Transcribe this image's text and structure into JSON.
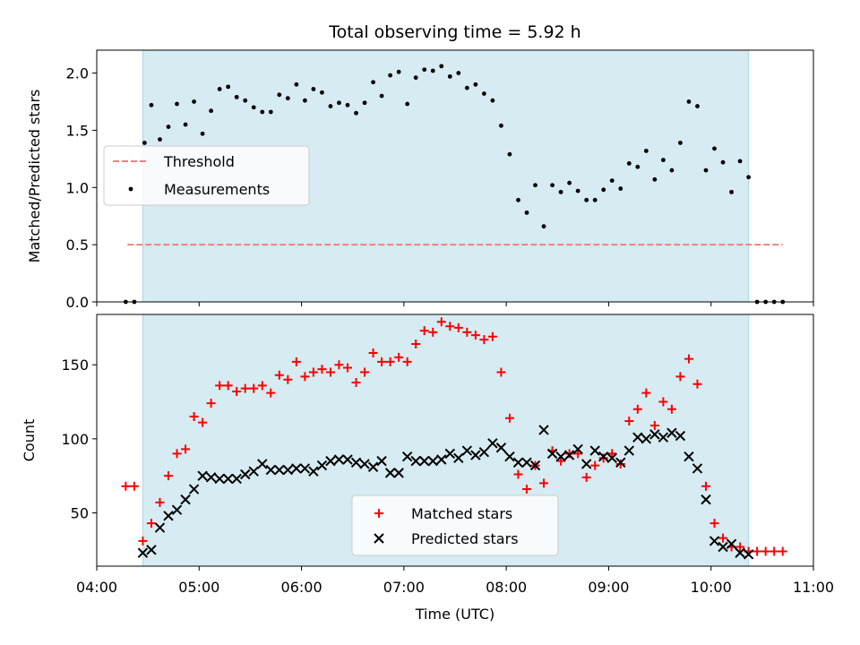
{
  "chart_data": [
    {
      "type": "scatter",
      "title": "Total observing time = 5.92 h",
      "xlabel": "",
      "ylabel": "Matched/Predicted stars",
      "xlim": [
        "04:00",
        "11:00"
      ],
      "ylim": [
        0,
        2.2
      ],
      "yticks": [
        0.0,
        0.5,
        1.0,
        1.5,
        2.0
      ],
      "ytick_labels": [
        "0.0",
        "0.5",
        "1.0",
        "1.5",
        "2.0"
      ],
      "observing_window": [
        "04:27",
        "10:22"
      ],
      "threshold": {
        "name": "Threshold",
        "value": 0.5,
        "x_range": [
          "04:18",
          "10:42"
        ],
        "color": "#f08080"
      },
      "series": [
        {
          "name": "Measurements",
          "color": "#000000",
          "points": [
            [
              "04:17",
              0.0
            ],
            [
              "04:22",
              0.0
            ],
            [
              "04:28",
              1.39
            ],
            [
              "04:32",
              1.72
            ],
            [
              "04:37",
              1.42
            ],
            [
              "04:42",
              1.53
            ],
            [
              "04:47",
              1.73
            ],
            [
              "04:52",
              1.55
            ],
            [
              "04:57",
              1.75
            ],
            [
              "05:02",
              1.47
            ],
            [
              "05:07",
              1.67
            ],
            [
              "05:12",
              1.86
            ],
            [
              "05:17",
              1.88
            ],
            [
              "05:22",
              1.79
            ],
            [
              "05:27",
              1.76
            ],
            [
              "05:32",
              1.7
            ],
            [
              "05:37",
              1.66
            ],
            [
              "05:42",
              1.66
            ],
            [
              "05:47",
              1.81
            ],
            [
              "05:52",
              1.78
            ],
            [
              "05:57",
              1.9
            ],
            [
              "06:02",
              1.76
            ],
            [
              "06:07",
              1.86
            ],
            [
              "06:12",
              1.83
            ],
            [
              "06:17",
              1.71
            ],
            [
              "06:22",
              1.74
            ],
            [
              "06:27",
              1.72
            ],
            [
              "06:32",
              1.65
            ],
            [
              "06:37",
              1.74
            ],
            [
              "06:42",
              1.92
            ],
            [
              "06:47",
              1.8
            ],
            [
              "06:52",
              1.98
            ],
            [
              "06:57",
              2.01
            ],
            [
              "07:02",
              1.73
            ],
            [
              "07:07",
              1.96
            ],
            [
              "07:12",
              2.03
            ],
            [
              "07:17",
              2.02
            ],
            [
              "07:22",
              2.06
            ],
            [
              "07:27",
              1.97
            ],
            [
              "07:32",
              2.0
            ],
            [
              "07:37",
              1.87
            ],
            [
              "07:42",
              1.9
            ],
            [
              "07:47",
              1.82
            ],
            [
              "07:52",
              1.76
            ],
            [
              "07:57",
              1.54
            ],
            [
              "08:02",
              1.29
            ],
            [
              "08:07",
              0.89
            ],
            [
              "08:12",
              0.78
            ],
            [
              "08:17",
              1.02
            ],
            [
              "08:22",
              0.66
            ],
            [
              "08:27",
              1.02
            ],
            [
              "08:32",
              0.96
            ],
            [
              "08:37",
              1.04
            ],
            [
              "08:42",
              0.97
            ],
            [
              "08:47",
              0.89
            ],
            [
              "08:52",
              0.89
            ],
            [
              "08:57",
              0.98
            ],
            [
              "09:02",
              1.06
            ],
            [
              "09:07",
              0.99
            ],
            [
              "09:12",
              1.21
            ],
            [
              "09:17",
              1.18
            ],
            [
              "09:22",
              1.32
            ],
            [
              "09:27",
              1.07
            ],
            [
              "09:32",
              1.24
            ],
            [
              "09:37",
              1.15
            ],
            [
              "09:42",
              1.39
            ],
            [
              "09:47",
              1.75
            ],
            [
              "09:52",
              1.71
            ],
            [
              "09:57",
              1.15
            ],
            [
              "10:02",
              1.34
            ],
            [
              "10:07",
              1.22
            ],
            [
              "10:12",
              0.96
            ],
            [
              "10:17",
              1.23
            ],
            [
              "10:22",
              1.09
            ],
            [
              "10:27",
              0.0
            ],
            [
              "10:32",
              0.0
            ],
            [
              "10:37",
              0.0
            ],
            [
              "10:42",
              0.0
            ]
          ]
        }
      ],
      "legend": {
        "position": "center-left",
        "entries": [
          "Threshold",
          "Measurements"
        ]
      }
    },
    {
      "type": "scatter",
      "title": "",
      "xlabel": "Time (UTC)",
      "ylabel": "Count",
      "xlim": [
        "04:00",
        "11:00"
      ],
      "ylim": [
        14,
        184
      ],
      "xticks": [
        "04:00",
        "05:00",
        "06:00",
        "07:00",
        "08:00",
        "09:00",
        "10:00",
        "11:00"
      ],
      "yticks": [
        50,
        100,
        150
      ],
      "ytick_labels": [
        "50",
        "100",
        "150"
      ],
      "observing_window": [
        "04:27",
        "10:22"
      ],
      "series": [
        {
          "name": "Matched stars",
          "color": "#ff0000",
          "marker": "+",
          "points": [
            [
              "04:17",
              68
            ],
            [
              "04:22",
              68
            ],
            [
              "04:27",
              31
            ],
            [
              "04:32",
              43
            ],
            [
              "04:37",
              57
            ],
            [
              "04:42",
              75
            ],
            [
              "04:47",
              90
            ],
            [
              "04:52",
              93
            ],
            [
              "04:57",
              115
            ],
            [
              "05:02",
              111
            ],
            [
              "05:07",
              124
            ],
            [
              "05:12",
              136
            ],
            [
              "05:17",
              136
            ],
            [
              "05:22",
              132
            ],
            [
              "05:27",
              134
            ],
            [
              "05:32",
              134
            ],
            [
              "05:37",
              136
            ],
            [
              "05:42",
              131
            ],
            [
              "05:47",
              143
            ],
            [
              "05:52",
              140
            ],
            [
              "05:57",
              152
            ],
            [
              "06:02",
              142
            ],
            [
              "06:07",
              145
            ],
            [
              "06:12",
              147
            ],
            [
              "06:17",
              145
            ],
            [
              "06:22",
              150
            ],
            [
              "06:27",
              148
            ],
            [
              "06:32",
              138
            ],
            [
              "06:37",
              145
            ],
            [
              "06:42",
              158
            ],
            [
              "06:47",
              152
            ],
            [
              "06:52",
              152
            ],
            [
              "06:57",
              155
            ],
            [
              "07:02",
              152
            ],
            [
              "07:07",
              164
            ],
            [
              "07:12",
              173
            ],
            [
              "07:17",
              172
            ],
            [
              "07:22",
              179
            ],
            [
              "07:27",
              176
            ],
            [
              "07:32",
              175
            ],
            [
              "07:37",
              172
            ],
            [
              "07:42",
              170
            ],
            [
              "07:47",
              167
            ],
            [
              "07:52",
              169
            ],
            [
              "07:57",
              145
            ],
            [
              "08:02",
              114
            ],
            [
              "08:07",
              76
            ],
            [
              "08:12",
              66
            ],
            [
              "08:17",
              82
            ],
            [
              "08:22",
              70
            ],
            [
              "08:27",
              92
            ],
            [
              "08:32",
              85
            ],
            [
              "08:37",
              90
            ],
            [
              "08:42",
              90
            ],
            [
              "08:47",
              74
            ],
            [
              "08:52",
              82
            ],
            [
              "08:57",
              87
            ],
            [
              "09:02",
              90
            ],
            [
              "09:07",
              83
            ],
            [
              "09:12",
              112
            ],
            [
              "09:17",
              120
            ],
            [
              "09:22",
              131
            ],
            [
              "09:27",
              109
            ],
            [
              "09:32",
              125
            ],
            [
              "09:37",
              120
            ],
            [
              "09:42",
              142
            ],
            [
              "09:47",
              154
            ],
            [
              "09:52",
              137
            ],
            [
              "09:57",
              68
            ],
            [
              "10:02",
              43
            ],
            [
              "10:07",
              33
            ],
            [
              "10:12",
              27
            ],
            [
              "10:17",
              27
            ],
            [
              "10:22",
              24
            ],
            [
              "10:27",
              24
            ],
            [
              "10:32",
              24
            ],
            [
              "10:37",
              24
            ],
            [
              "10:42",
              24
            ]
          ]
        },
        {
          "name": "Predicted stars",
          "color": "#000000",
          "marker": "x",
          "points": [
            [
              "04:27",
              23
            ],
            [
              "04:32",
              25
            ],
            [
              "04:37",
              40
            ],
            [
              "04:42",
              48
            ],
            [
              "04:47",
              52
            ],
            [
              "04:52",
              59
            ],
            [
              "04:57",
              66
            ],
            [
              "05:02",
              75
            ],
            [
              "05:07",
              74
            ],
            [
              "05:12",
              73
            ],
            [
              "05:17",
              73
            ],
            [
              "05:22",
              73
            ],
            [
              "05:27",
              76
            ],
            [
              "05:32",
              78
            ],
            [
              "05:37",
              83
            ],
            [
              "05:42",
              79
            ],
            [
              "05:47",
              79
            ],
            [
              "05:52",
              79
            ],
            [
              "05:57",
              80
            ],
            [
              "06:02",
              80
            ],
            [
              "06:07",
              78
            ],
            [
              "06:12",
              82
            ],
            [
              "06:17",
              85
            ],
            [
              "06:22",
              86
            ],
            [
              "06:27",
              86
            ],
            [
              "06:32",
              84
            ],
            [
              "06:37",
              83
            ],
            [
              "06:42",
              81
            ],
            [
              "06:47",
              85
            ],
            [
              "06:52",
              77
            ],
            [
              "06:57",
              77
            ],
            [
              "07:02",
              88
            ],
            [
              "07:07",
              85
            ],
            [
              "07:12",
              85
            ],
            [
              "07:17",
              85
            ],
            [
              "07:22",
              86
            ],
            [
              "07:27",
              90
            ],
            [
              "07:32",
              87
            ],
            [
              "07:37",
              92
            ],
            [
              "07:42",
              89
            ],
            [
              "07:47",
              91
            ],
            [
              "07:52",
              97
            ],
            [
              "07:57",
              94
            ],
            [
              "08:02",
              88
            ],
            [
              "08:07",
              84
            ],
            [
              "08:12",
              84
            ],
            [
              "08:17",
              82
            ],
            [
              "08:22",
              106
            ],
            [
              "08:27",
              90
            ],
            [
              "08:32",
              88
            ],
            [
              "08:37",
              89
            ],
            [
              "08:42",
              93
            ],
            [
              "08:47",
              83
            ],
            [
              "08:52",
              92
            ],
            [
              "08:57",
              88
            ],
            [
              "09:02",
              87
            ],
            [
              "09:07",
              84
            ],
            [
              "09:12",
              92
            ],
            [
              "09:17",
              101
            ],
            [
              "09:22",
              100
            ],
            [
              "09:27",
              103
            ],
            [
              "09:32",
              101
            ],
            [
              "09:37",
              104
            ],
            [
              "09:42",
              102
            ],
            [
              "09:47",
              88
            ],
            [
              "09:52",
              80
            ],
            [
              "09:57",
              59
            ],
            [
              "10:02",
              31
            ],
            [
              "10:07",
              27
            ],
            [
              "10:12",
              29
            ],
            [
              "10:17",
              23
            ],
            [
              "10:22",
              22
            ]
          ]
        }
      ],
      "legend": {
        "position": "bottom-center",
        "entries": [
          "Matched stars",
          "Predicted stars"
        ]
      }
    }
  ]
}
